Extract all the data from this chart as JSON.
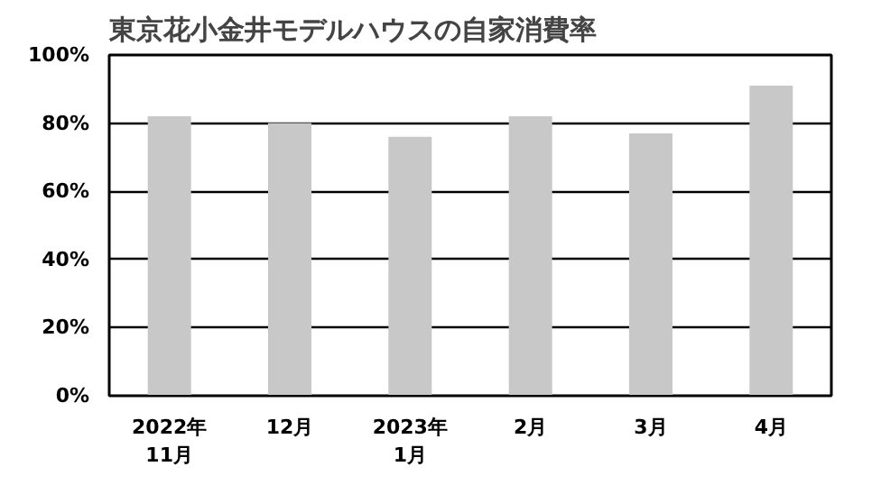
{
  "chart_data": {
    "type": "bar",
    "title": "東京花小金井モデルハウスの自家消費率",
    "categories": [
      "2022年\n11月",
      "12月",
      "2023年\n1月",
      "2月",
      "3月",
      "4月"
    ],
    "values": [
      82,
      80,
      76,
      82,
      77,
      91
    ],
    "color": "#c8c8c8",
    "ylim": [
      0,
      100
    ],
    "yticks": [
      {
        "value": 0,
        "label": "0%"
      },
      {
        "value": 20,
        "label": "20%"
      },
      {
        "value": 40,
        "label": "40%"
      },
      {
        "value": 60,
        "label": "60%"
      },
      {
        "value": 80,
        "label": "80%"
      },
      {
        "value": 100,
        "label": "100%"
      }
    ],
    "grid": "y"
  }
}
